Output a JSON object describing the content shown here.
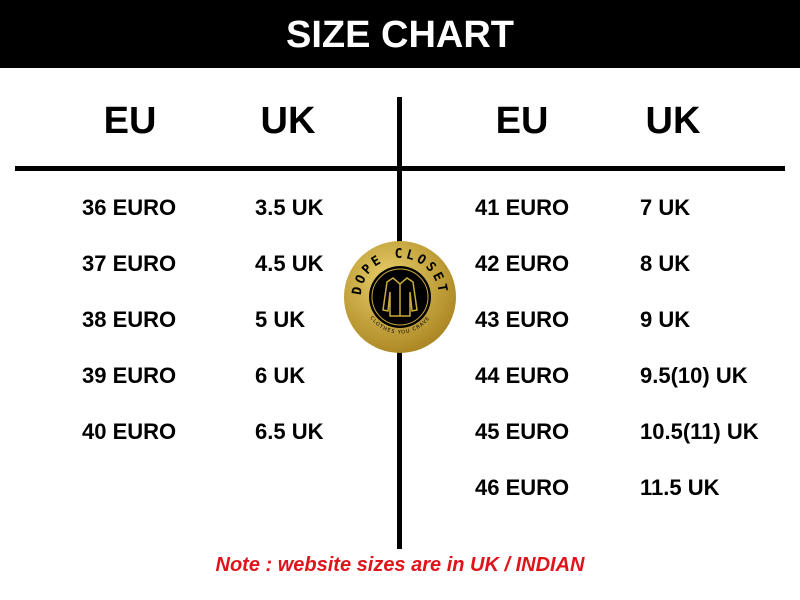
{
  "title": "SIZE CHART",
  "left": {
    "headers": [
      "EU",
      "UK"
    ],
    "rows": [
      [
        "36 EURO",
        "3.5 UK"
      ],
      [
        "37 EURO",
        "4.5 UK"
      ],
      [
        "38 EURO",
        "5 UK"
      ],
      [
        "39 EURO",
        "6 UK"
      ],
      [
        "40 EURO",
        "6.5 UK"
      ]
    ]
  },
  "right": {
    "headers": [
      "EU",
      "UK"
    ],
    "rows": [
      [
        "41 EURO",
        "7 UK"
      ],
      [
        "42 EURO",
        "8 UK"
      ],
      [
        "43 EURO",
        "9 UK"
      ],
      [
        "44 EURO",
        "9.5(10) UK"
      ],
      [
        "45 EURO",
        "10.5(11) UK"
      ],
      [
        "46 EURO",
        "11.5 UK"
      ]
    ]
  },
  "logo": {
    "name": "DOPE CLOSET",
    "tagline": "CLOTHES YOU CRAVE",
    "icon": "shirt-icon",
    "color": "#c9a93a"
  },
  "note": "Note : website sizes are in UK / INDIAN",
  "colors": {
    "header_bg": "#000000",
    "note": "#e0141b"
  }
}
